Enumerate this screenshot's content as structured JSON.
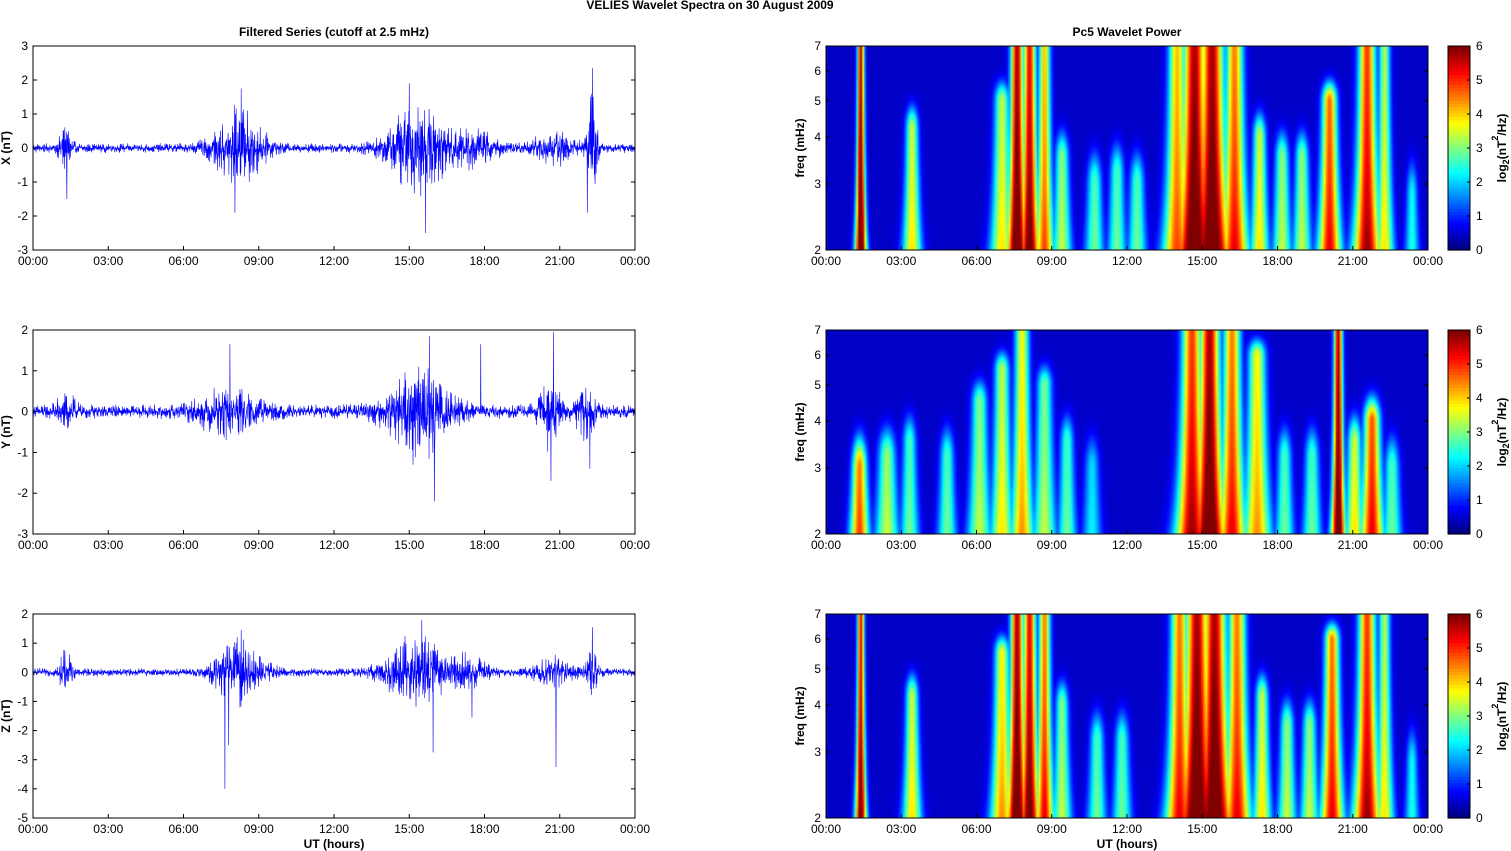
{
  "figure": {
    "title": "VELIES Wavelet Spectra on 30 August    2009",
    "left_title": "Filtered Series (cutoff at 2.5 mHz)",
    "right_title": "Pc5 Wavelet Power",
    "xlabel": "UT (hours)"
  },
  "chart_data": [
    {
      "type": "line",
      "title": "Filtered Series (cutoff at 2.5 mHz)",
      "ylabel": "X (nT)",
      "xlabel": "",
      "x_ticks": [
        "00:00",
        "03:00",
        "06:00",
        "09:00",
        "12:00",
        "15:00",
        "18:00",
        "21:00",
        "00:00"
      ],
      "xlim": [
        0,
        24
      ],
      "ylim": [
        -3,
        3
      ],
      "y_ticks": [
        -3,
        -2,
        -1,
        0,
        1,
        2,
        3
      ],
      "series_color": "#0000ff",
      "baseline_noise": 0.15,
      "bursts": [
        {
          "t": 1.3,
          "w": 0.25,
          "a": 0.8
        },
        {
          "t": 8.2,
          "w": 1.0,
          "a": 1.2
        },
        {
          "t": 15.3,
          "w": 1.2,
          "a": 1.4
        },
        {
          "t": 17.5,
          "w": 1.0,
          "a": 0.5
        },
        {
          "t": 20.8,
          "w": 0.8,
          "a": 0.5
        },
        {
          "t": 22.3,
          "w": 0.2,
          "a": 1.7
        }
      ],
      "peaks": [
        {
          "t": 1.35,
          "v": -1.5
        },
        {
          "t": 8.05,
          "v": -1.9
        },
        {
          "t": 8.3,
          "v": 1.75
        },
        {
          "t": 15.0,
          "v": 1.9
        },
        {
          "t": 15.65,
          "v": -2.5
        },
        {
          "t": 22.3,
          "v": 2.35
        },
        {
          "t": 22.1,
          "v": -1.9
        }
      ]
    },
    {
      "type": "line",
      "ylabel": "Y (nT)",
      "xlabel": "",
      "x_ticks": [
        "00:00",
        "03:00",
        "06:00",
        "09:00",
        "12:00",
        "15:00",
        "18:00",
        "21:00",
        "00:00"
      ],
      "xlim": [
        0,
        24
      ],
      "ylim": [
        -3,
        2
      ],
      "y_ticks": [
        -3,
        -2,
        -1,
        0,
        1,
        2
      ],
      "series_color": "#0000ff",
      "baseline_noise": 0.18,
      "bursts": [
        {
          "t": 1.3,
          "w": 0.4,
          "a": 0.4
        },
        {
          "t": 7.8,
          "w": 1.2,
          "a": 0.6
        },
        {
          "t": 15.4,
          "w": 1.3,
          "a": 1.1
        },
        {
          "t": 20.6,
          "w": 0.4,
          "a": 0.9
        },
        {
          "t": 22.0,
          "w": 0.4,
          "a": 0.6
        }
      ],
      "peaks": [
        {
          "t": 7.85,
          "v": 1.65
        },
        {
          "t": 15.15,
          "v": -1.3
        },
        {
          "t": 15.8,
          "v": 1.85
        },
        {
          "t": 16.0,
          "v": -2.2
        },
        {
          "t": 17.85,
          "v": 1.65
        },
        {
          "t": 20.75,
          "v": 1.95
        },
        {
          "t": 20.65,
          "v": -1.7
        },
        {
          "t": 22.2,
          "v": -1.4
        }
      ]
    },
    {
      "type": "line",
      "ylabel": "Z (nT)",
      "xlabel": "UT (hours)",
      "x_ticks": [
        "00:00",
        "03:00",
        "06:00",
        "09:00",
        "12:00",
        "15:00",
        "18:00",
        "21:00",
        "00:00"
      ],
      "xlim": [
        0,
        24
      ],
      "ylim": [
        -5,
        2
      ],
      "y_ticks": [
        -5,
        -4,
        -3,
        -2,
        -1,
        0,
        1,
        2
      ],
      "series_color": "#0000ff",
      "baseline_noise": 0.15,
      "bursts": [
        {
          "t": 1.3,
          "w": 0.25,
          "a": 0.7
        },
        {
          "t": 8.2,
          "w": 1.0,
          "a": 1.1
        },
        {
          "t": 15.3,
          "w": 1.2,
          "a": 1.3
        },
        {
          "t": 17.4,
          "w": 0.8,
          "a": 0.5
        },
        {
          "t": 20.8,
          "w": 0.8,
          "a": 0.5
        },
        {
          "t": 22.3,
          "w": 0.2,
          "a": 1.0
        }
      ],
      "peaks": [
        {
          "t": 7.65,
          "v": -4.0
        },
        {
          "t": 7.8,
          "v": -2.5
        },
        {
          "t": 8.3,
          "v": 1.45
        },
        {
          "t": 15.5,
          "v": 1.8
        },
        {
          "t": 15.95,
          "v": -2.75
        },
        {
          "t": 17.5,
          "v": -1.55
        },
        {
          "t": 22.3,
          "v": 1.55
        },
        {
          "t": 20.85,
          "v": -3.25
        }
      ]
    },
    {
      "type": "heatmap",
      "title": "Pc5 Wavelet Power",
      "ylabel": "freq (mHz)",
      "xlabel": "",
      "x_ticks": [
        "00:00",
        "03:00",
        "06:00",
        "09:00",
        "12:00",
        "15:00",
        "18:00",
        "21:00",
        "00:00"
      ],
      "xlim": [
        0,
        24
      ],
      "ylim": [
        2,
        7
      ],
      "y_scale": "log",
      "y_ticks": [
        2,
        3,
        4,
        5,
        6,
        7
      ],
      "colorbar_label": "log2(nT^2/Hz)",
      "colorbar_ticks": [
        0,
        1,
        2,
        3,
        4,
        5,
        6
      ],
      "colormap": "jet",
      "blobs": [
        {
          "t": 1.35,
          "a": 6.5,
          "w": 0.12,
          "f": 7.0
        },
        {
          "t": 3.4,
          "a": 3.5,
          "w": 0.2,
          "f": 4.2
        },
        {
          "t": 7.0,
          "a": 3.5,
          "w": 0.25,
          "f": 5.0
        },
        {
          "t": 7.6,
          "a": 6.5,
          "w": 0.22,
          "f": 7.0
        },
        {
          "t": 8.1,
          "a": 6.0,
          "w": 0.22,
          "f": 7.0
        },
        {
          "t": 8.7,
          "a": 4.5,
          "w": 0.2,
          "f": 7.0
        },
        {
          "t": 9.4,
          "a": 3.0,
          "w": 0.2,
          "f": 3.5
        },
        {
          "t": 10.7,
          "a": 2.5,
          "w": 0.2,
          "f": 3.0
        },
        {
          "t": 11.6,
          "a": 2.5,
          "w": 0.2,
          "f": 3.2
        },
        {
          "t": 12.4,
          "a": 2.5,
          "w": 0.2,
          "f": 3.0
        },
        {
          "t": 14.0,
          "a": 4.5,
          "w": 0.3,
          "f": 7.0
        },
        {
          "t": 14.7,
          "a": 6.5,
          "w": 0.4,
          "f": 7.0
        },
        {
          "t": 15.4,
          "a": 6.5,
          "w": 0.4,
          "f": 7.0
        },
        {
          "t": 16.3,
          "a": 5.0,
          "w": 0.3,
          "f": 7.0
        },
        {
          "t": 17.3,
          "a": 3.5,
          "w": 0.2,
          "f": 4.0
        },
        {
          "t": 18.2,
          "a": 3.0,
          "w": 0.2,
          "f": 3.5
        },
        {
          "t": 19.0,
          "a": 3.0,
          "w": 0.2,
          "f": 3.5
        },
        {
          "t": 20.1,
          "a": 5.0,
          "w": 0.25,
          "f": 5.0
        },
        {
          "t": 21.6,
          "a": 5.5,
          "w": 0.3,
          "f": 7.0
        },
        {
          "t": 22.3,
          "a": 3.5,
          "w": 0.2,
          "f": 7.0
        },
        {
          "t": 23.4,
          "a": 2.0,
          "w": 0.15,
          "f": 2.8
        }
      ]
    },
    {
      "type": "heatmap",
      "ylabel": "freq (mHz)",
      "xlabel": "",
      "x_ticks": [
        "00:00",
        "03:00",
        "06:00",
        "09:00",
        "12:00",
        "15:00",
        "18:00",
        "21:00",
        "00:00"
      ],
      "xlim": [
        0,
        24
      ],
      "ylim": [
        2,
        7
      ],
      "y_scale": "log",
      "y_ticks": [
        2,
        3,
        4,
        5,
        6,
        7
      ],
      "colorbar_label": "log2(nT^2/Hz)",
      "colorbar_ticks": [
        0,
        1,
        2,
        3,
        4,
        5,
        6
      ],
      "colormap": "jet",
      "blobs": [
        {
          "t": 1.3,
          "a": 4.5,
          "w": 0.2,
          "f": 3.0
        },
        {
          "t": 2.4,
          "a": 3.0,
          "w": 0.25,
          "f": 3.2
        },
        {
          "t": 3.3,
          "a": 2.5,
          "w": 0.2,
          "f": 3.5
        },
        {
          "t": 4.8,
          "a": 2.5,
          "w": 0.2,
          "f": 3.2
        },
        {
          "t": 6.1,
          "a": 3.0,
          "w": 0.25,
          "f": 4.5
        },
        {
          "t": 7.0,
          "a": 3.5,
          "w": 0.25,
          "f": 5.5
        },
        {
          "t": 7.8,
          "a": 4.0,
          "w": 0.25,
          "f": 7.0
        },
        {
          "t": 8.7,
          "a": 3.0,
          "w": 0.25,
          "f": 5.0
        },
        {
          "t": 9.6,
          "a": 2.5,
          "w": 0.2,
          "f": 3.5
        },
        {
          "t": 10.6,
          "a": 1.8,
          "w": 0.2,
          "f": 3.0
        },
        {
          "t": 14.6,
          "a": 5.5,
          "w": 0.35,
          "f": 7.0
        },
        {
          "t": 15.3,
          "a": 6.5,
          "w": 0.35,
          "f": 7.0
        },
        {
          "t": 16.2,
          "a": 5.0,
          "w": 0.3,
          "f": 7.0
        },
        {
          "t": 17.2,
          "a": 4.0,
          "w": 0.3,
          "f": 6.0
        },
        {
          "t": 18.3,
          "a": 2.5,
          "w": 0.2,
          "f": 3.2
        },
        {
          "t": 19.4,
          "a": 2.5,
          "w": 0.2,
          "f": 3.2
        },
        {
          "t": 20.45,
          "a": 6.5,
          "w": 0.15,
          "f": 7.0
        },
        {
          "t": 21.1,
          "a": 3.5,
          "w": 0.2,
          "f": 3.5
        },
        {
          "t": 21.8,
          "a": 5.0,
          "w": 0.25,
          "f": 4.0
        },
        {
          "t": 22.6,
          "a": 2.5,
          "w": 0.2,
          "f": 3.0
        }
      ]
    },
    {
      "type": "heatmap",
      "ylabel": "freq (mHz)",
      "xlabel": "UT (hours)",
      "x_ticks": [
        "00:00",
        "03:00",
        "06:00",
        "09:00",
        "12:00",
        "15:00",
        "18:00",
        "21:00",
        "00:00"
      ],
      "xlim": [
        0,
        24
      ],
      "ylim": [
        2,
        7
      ],
      "y_scale": "log",
      "y_ticks": [
        2,
        3,
        4,
        5,
        6,
        7
      ],
      "colorbar_label": "log2(nT^2/Hz)",
      "colorbar_ticks": [
        0,
        1,
        2,
        3,
        4,
        5,
        6
      ],
      "colormap": "jet",
      "blobs": [
        {
          "t": 1.35,
          "a": 6.0,
          "w": 0.12,
          "f": 7.0
        },
        {
          "t": 3.4,
          "a": 3.5,
          "w": 0.2,
          "f": 4.2
        },
        {
          "t": 7.0,
          "a": 4.0,
          "w": 0.25,
          "f": 5.5
        },
        {
          "t": 7.6,
          "a": 6.5,
          "w": 0.22,
          "f": 7.0
        },
        {
          "t": 8.1,
          "a": 6.0,
          "w": 0.22,
          "f": 7.0
        },
        {
          "t": 8.7,
          "a": 5.0,
          "w": 0.2,
          "f": 7.0
        },
        {
          "t": 9.4,
          "a": 3.0,
          "w": 0.2,
          "f": 4.0
        },
        {
          "t": 10.8,
          "a": 2.5,
          "w": 0.2,
          "f": 3.2
        },
        {
          "t": 11.8,
          "a": 2.5,
          "w": 0.2,
          "f": 3.2
        },
        {
          "t": 14.1,
          "a": 5.0,
          "w": 0.3,
          "f": 7.0
        },
        {
          "t": 14.8,
          "a": 6.5,
          "w": 0.4,
          "f": 7.0
        },
        {
          "t": 15.5,
          "a": 6.5,
          "w": 0.4,
          "f": 7.0
        },
        {
          "t": 16.4,
          "a": 5.0,
          "w": 0.3,
          "f": 7.0
        },
        {
          "t": 17.4,
          "a": 3.5,
          "w": 0.2,
          "f": 4.2
        },
        {
          "t": 18.4,
          "a": 3.0,
          "w": 0.2,
          "f": 3.5
        },
        {
          "t": 19.3,
          "a": 3.0,
          "w": 0.2,
          "f": 3.5
        },
        {
          "t": 20.2,
          "a": 5.0,
          "w": 0.25,
          "f": 6.0
        },
        {
          "t": 21.6,
          "a": 5.5,
          "w": 0.3,
          "f": 7.0
        },
        {
          "t": 22.3,
          "a": 3.5,
          "w": 0.2,
          "f": 7.0
        },
        {
          "t": 23.4,
          "a": 2.0,
          "w": 0.15,
          "f": 2.8
        }
      ]
    }
  ]
}
